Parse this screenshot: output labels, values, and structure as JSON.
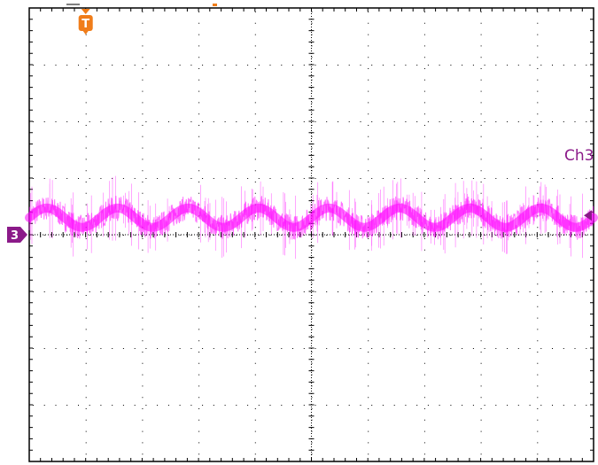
{
  "chart_data": {
    "type": "line",
    "title": "",
    "xlabel": "",
    "ylabel": "",
    "grid": true,
    "grid_divisions": {
      "x": 10,
      "y": 8
    },
    "grid_minor_per_division": 5,
    "xlim": [
      0,
      10
    ],
    "ylim": [
      -4,
      4
    ],
    "series": [
      {
        "name": "Ch3",
        "color": "#ff00ff",
        "baseline_div": 0.3,
        "ripple_amplitude_div": 0.17,
        "ripple_cycles": 8,
        "noise_band_div": 0.22
      }
    ],
    "channel_marker": {
      "text": "3",
      "y_div": 0.0,
      "color": "#8b1a89"
    },
    "trigger_marker": {
      "text": "T",
      "x_div": 1.0,
      "color": "#f07d1a"
    },
    "trigger_level_color": "#8b1a89"
  },
  "colors": {
    "grid_frame": "#000000",
    "grid_dots": "#000000",
    "trace": "#ff00ff",
    "channel_label": "#8b1a89",
    "trigger": "#f07d1a"
  }
}
